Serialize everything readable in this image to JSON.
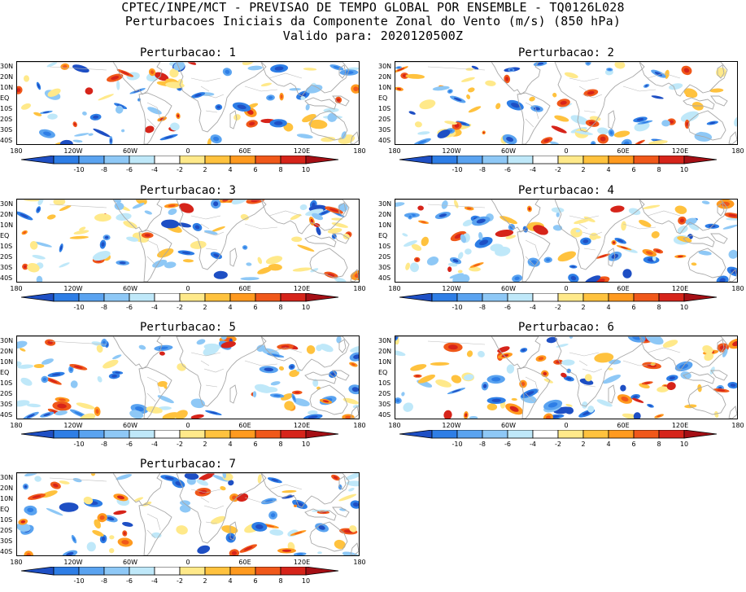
{
  "header": {
    "line1": "CPTEC/INPE/MCT - PREVISAO DE TEMPO GLOBAL POR ENSEMBLE - TQ0126L028",
    "line2": "Perturbacoes Iniciais da Componente Zonal do Vento (m/s) (850 hPa)",
    "line3": "Valido para: 2020120500Z"
  },
  "panels": [
    {
      "title": "Perturbacao: 1"
    },
    {
      "title": "Perturbacao: 2"
    },
    {
      "title": "Perturbacao: 3"
    },
    {
      "title": "Perturbacao: 4"
    },
    {
      "title": "Perturbacao: 5"
    },
    {
      "title": "Perturbacao: 6"
    },
    {
      "title": "Perturbacao: 7"
    }
  ],
  "lat_labels": [
    "30N",
    "20N",
    "10N",
    "EQ",
    "10S",
    "20S",
    "30S",
    "40S"
  ],
  "lon_labels": [
    "180",
    "120W",
    "60W",
    "0",
    "60E",
    "120E",
    "180"
  ],
  "colorbar": {
    "ticks": [
      "-10",
      "-8",
      "-6",
      "-4",
      "-2",
      "2",
      "4",
      "6",
      "8",
      "10"
    ],
    "colors": [
      "#1e4fc4",
      "#2e7ee6",
      "#5aa3f0",
      "#8ec8f6",
      "#bfe8f9",
      "#ffffff",
      "#ffe98a",
      "#ffc23e",
      "#ff9a1f",
      "#f0581a",
      "#d6241a",
      "#a50f15"
    ]
  }
}
